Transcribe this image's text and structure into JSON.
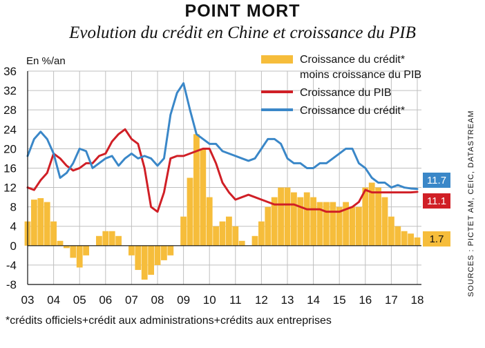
{
  "header": {
    "title": "POINT MORT",
    "subtitle": "Evolution du crédit en Chine et croissance du PIB"
  },
  "source": "SOURCES : PICTET AM, CEIC, DATASTREAM",
  "footnote": "*crédits officiels+crédit aux administrations+crédits aux entreprises",
  "chart_data": {
    "type": "bar",
    "y_unit": "En %/an",
    "ylim": [
      -8,
      36
    ],
    "yticks": [
      "36",
      "32",
      "28",
      "24",
      "20",
      "16",
      "12",
      "8",
      "4",
      "0",
      "-4",
      "-8"
    ],
    "xticks": [
      "03",
      "04",
      "05",
      "06",
      "07",
      "08",
      "09",
      "10",
      "11",
      "12",
      "13",
      "14",
      "15",
      "16",
      "17",
      "18"
    ],
    "xlim": [
      2003.0,
      2018.0
    ],
    "grid": true,
    "legend_position": "top-right",
    "colors": {
      "spread": "#f6bd3b",
      "gdp": "#d01f26",
      "credit": "#3a87c8"
    },
    "series": [
      {
        "name": "Croissance du crédit* moins croissance du PIB",
        "name_lines": [
          "Croissance du crédit*",
          "moins croissance du PIB"
        ],
        "kind": "bar",
        "x": [
          2003.0,
          2003.25,
          2003.5,
          2003.75,
          2004.0,
          2004.25,
          2004.5,
          2004.75,
          2005.0,
          2005.25,
          2005.5,
          2005.75,
          2006.0,
          2006.25,
          2006.5,
          2006.75,
          2007.0,
          2007.25,
          2007.5,
          2007.75,
          2008.0,
          2008.25,
          2008.5,
          2008.75,
          2009.0,
          2009.25,
          2009.5,
          2009.75,
          2010.0,
          2010.25,
          2010.5,
          2010.75,
          2011.0,
          2011.25,
          2011.5,
          2011.75,
          2012.0,
          2012.25,
          2012.5,
          2012.75,
          2013.0,
          2013.25,
          2013.5,
          2013.75,
          2014.0,
          2014.25,
          2014.5,
          2014.75,
          2015.0,
          2015.25,
          2015.5,
          2015.75,
          2016.0,
          2016.25,
          2016.5,
          2016.75,
          2017.0,
          2017.25,
          2017.5,
          2017.75,
          2018.0
        ],
        "values": [
          5,
          9.5,
          9.8,
          9,
          5,
          1,
          -0.5,
          -2.5,
          -4.5,
          -2,
          0,
          2,
          3,
          3,
          2,
          0,
          -2,
          -5,
          -7,
          -6,
          -4,
          -3,
          -2,
          0,
          6,
          14,
          23,
          20,
          10,
          4,
          5,
          6,
          4,
          1,
          0,
          2,
          5,
          8,
          10,
          12,
          12,
          11,
          10,
          11,
          10,
          9,
          9,
          9,
          8,
          9,
          8,
          8,
          12,
          13,
          12,
          10,
          6,
          4,
          3,
          2.5,
          1.7
        ],
        "last_value": "1.7"
      },
      {
        "name": "Croissance du PIB",
        "kind": "line",
        "x": [
          2003.0,
          2003.25,
          2003.5,
          2003.75,
          2004.0,
          2004.25,
          2004.5,
          2004.75,
          2005.0,
          2005.25,
          2005.5,
          2005.75,
          2006.0,
          2006.25,
          2006.5,
          2006.75,
          2007.0,
          2007.25,
          2007.5,
          2007.75,
          2008.0,
          2008.25,
          2008.5,
          2008.75,
          2009.0,
          2009.25,
          2009.5,
          2009.75,
          2010.0,
          2010.25,
          2010.5,
          2010.75,
          2011.0,
          2011.25,
          2011.5,
          2011.75,
          2012.0,
          2012.25,
          2012.5,
          2012.75,
          2013.0,
          2013.25,
          2013.5,
          2013.75,
          2014.0,
          2014.25,
          2014.5,
          2014.75,
          2015.0,
          2015.25,
          2015.5,
          2015.75,
          2016.0,
          2016.25,
          2016.5,
          2016.75,
          2017.0,
          2017.25,
          2017.5,
          2017.75,
          2018.0
        ],
        "values": [
          12,
          11.5,
          13.5,
          15,
          19,
          18,
          16.5,
          15.5,
          16,
          17,
          17,
          18.5,
          19,
          21.5,
          23,
          24,
          22,
          21,
          16,
          8,
          7,
          11,
          18,
          18.5,
          18.5,
          19,
          19.5,
          20,
          20,
          17,
          13,
          11,
          9.5,
          10,
          10.5,
          10,
          9.5,
          9,
          8.5,
          8.5,
          8.5,
          8.5,
          8,
          7.5,
          7.5,
          7.5,
          7,
          7,
          7,
          7.5,
          8,
          9,
          11.5,
          11,
          11,
          11,
          11,
          11,
          11,
          11,
          11.1
        ],
        "last_value": "11.1"
      },
      {
        "name": "Croissance du crédit*",
        "kind": "line",
        "x": [
          2003.0,
          2003.25,
          2003.5,
          2003.75,
          2004.0,
          2004.25,
          2004.5,
          2004.75,
          2005.0,
          2005.25,
          2005.5,
          2005.75,
          2006.0,
          2006.25,
          2006.5,
          2006.75,
          2007.0,
          2007.25,
          2007.5,
          2007.75,
          2008.0,
          2008.25,
          2008.5,
          2008.75,
          2009.0,
          2009.25,
          2009.5,
          2009.75,
          2010.0,
          2010.25,
          2010.5,
          2010.75,
          2011.0,
          2011.25,
          2011.5,
          2011.75,
          2012.0,
          2012.25,
          2012.5,
          2012.75,
          2013.0,
          2013.25,
          2013.5,
          2013.75,
          2014.0,
          2014.25,
          2014.5,
          2014.75,
          2015.0,
          2015.25,
          2015.5,
          2015.75,
          2016.0,
          2016.25,
          2016.5,
          2016.75,
          2017.0,
          2017.25,
          2017.5,
          2017.75,
          2018.0
        ],
        "values": [
          18.5,
          22,
          23.5,
          22,
          19,
          14,
          15,
          17,
          20,
          19.5,
          16,
          17,
          18,
          18.5,
          16.5,
          18,
          19,
          18,
          18.5,
          18,
          16.5,
          18,
          27,
          31.5,
          33.5,
          28,
          23,
          22,
          21,
          21,
          19.5,
          19,
          18.5,
          18,
          17.5,
          18,
          20,
          22,
          22,
          21,
          18,
          17,
          17,
          16,
          16,
          17,
          17,
          18,
          19,
          20,
          20,
          17,
          16,
          14,
          13,
          13,
          12,
          12.5,
          12,
          11.8,
          11.7
        ],
        "last_value": "11.7"
      }
    ]
  }
}
